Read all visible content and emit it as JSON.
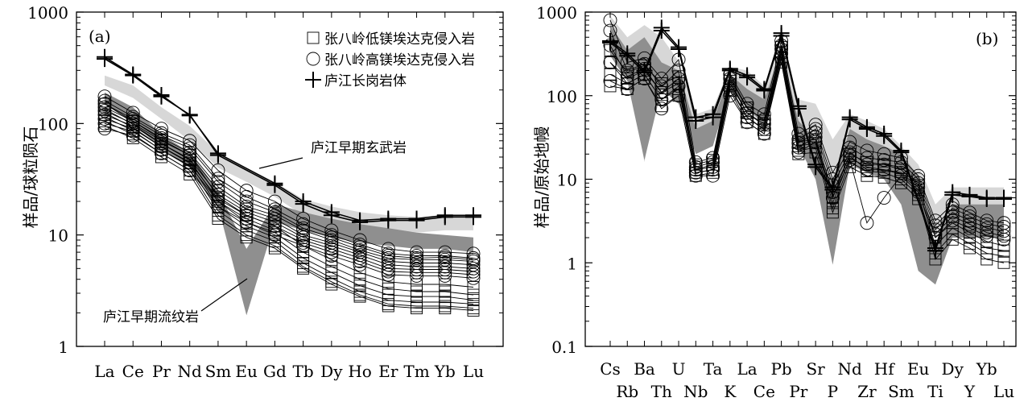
{
  "chart_data": [
    {
      "type": "line",
      "panel_label": "(a)",
      "ylabel": "样品/球粒陨石",
      "xlabel": "",
      "yscale": "log",
      "ylim": [
        1,
        1000
      ],
      "y_ticks": [
        "1",
        "10",
        "100",
        "1000"
      ],
      "categories": [
        "La",
        "Ce",
        "Pr",
        "Nd",
        "Sm",
        "Eu",
        "Gd",
        "Tb",
        "Dy",
        "Ho",
        "Er",
        "Tm",
        "Yb",
        "Lu"
      ],
      "legend": {
        "placement": "top-right",
        "entries": [
          {
            "marker": "square",
            "label": "张八岭低镁埃达克侵入岩"
          },
          {
            "marker": "circle",
            "label": "张八岭高镁埃达克侵入岩"
          },
          {
            "marker": "plus",
            "label": "庐江长岗岩体"
          }
        ]
      },
      "annotations": [
        "庐江早期玄武岩",
        "庐江早期流纹岩"
      ],
      "series": [
        {
          "name": "庐江长岗岩体",
          "marker": "plus",
          "values": [
            380,
            270,
            175,
            120,
            52,
            null,
            28,
            19,
            15,
            13,
            13.5,
            13.5,
            14.5,
            14.5
          ]
        },
        {
          "name": "庐江长岗岩体",
          "marker": "plus",
          "values": [
            395,
            275,
            180,
            118,
            54,
            null,
            29,
            20,
            16,
            13.5,
            14,
            14,
            15,
            15
          ]
        },
        {
          "marker": "circle",
          "values": [
            175,
            125,
            90,
            70,
            38,
            25,
            20,
            14,
            11,
            9,
            7.5,
            7,
            7,
            6.8
          ]
        },
        {
          "marker": "circle",
          "values": [
            160,
            115,
            82,
            64,
            32,
            22,
            17,
            12.5,
            10,
            8.2,
            6.8,
            6.5,
            6.5,
            6.2
          ]
        },
        {
          "marker": "circle",
          "values": [
            150,
            110,
            78,
            60,
            30,
            20,
            16,
            11.5,
            9.5,
            7.8,
            6.5,
            6.2,
            6.3,
            6
          ]
        },
        {
          "marker": "circle",
          "values": [
            140,
            105,
            74,
            55,
            27,
            18,
            15,
            11,
            9,
            7.3,
            6.2,
            6,
            6,
            5.8
          ]
        },
        {
          "marker": "circle",
          "values": [
            130,
            100,
            70,
            52,
            25,
            17,
            14,
            10,
            8.5,
            7,
            5.8,
            5.6,
            5.6,
            5.4
          ]
        },
        {
          "marker": "circle",
          "values": [
            120,
            95,
            66,
            48,
            23,
            16,
            13,
            9.5,
            8,
            6.6,
            5.4,
            5.2,
            5.2,
            5
          ]
        },
        {
          "marker": "circle",
          "values": [
            110,
            90,
            62,
            45,
            21,
            15,
            12,
            9,
            7.5,
            6.2,
            5,
            4.9,
            4.9,
            4.7
          ]
        },
        {
          "marker": "circle",
          "values": [
            100,
            85,
            58,
            42,
            20,
            14,
            11,
            8.5,
            7,
            5.8,
            4.7,
            4.6,
            4.6,
            4.4
          ]
        },
        {
          "marker": "circle",
          "values": [
            90,
            78,
            54,
            38,
            18,
            13,
            10,
            8,
            6.5,
            5.4,
            4.4,
            4.3,
            4.3,
            4.1
          ]
        },
        {
          "marker": "square",
          "values": [
            150,
            105,
            72,
            52,
            22,
            15,
            12,
            8,
            6,
            4.6,
            3.8,
            3.6,
            3.6,
            3.4
          ]
        },
        {
          "marker": "square",
          "values": [
            135,
            98,
            66,
            47,
            20,
            13,
            10.5,
            7,
            5.2,
            4,
            3.3,
            3.1,
            3.1,
            2.9
          ]
        },
        {
          "marker": "square",
          "values": [
            125,
            92,
            62,
            44,
            18,
            12,
            9.5,
            6.2,
            4.6,
            3.5,
            2.9,
            2.8,
            2.8,
            2.6
          ]
        },
        {
          "marker": "square",
          "values": [
            115,
            86,
            58,
            41,
            16.5,
            11,
            8.8,
            5.6,
            4.1,
            3.1,
            2.6,
            2.5,
            2.5,
            2.4
          ]
        },
        {
          "marker": "square",
          "values": [
            105,
            80,
            54,
            38,
            15,
            10,
            8,
            5.2,
            3.8,
            2.9,
            2.4,
            2.3,
            2.3,
            2.2
          ]
        },
        {
          "marker": "square",
          "values": [
            95,
            74,
            50,
            35,
            14,
            9.5,
            7.6,
            5,
            3.6,
            2.8,
            2.3,
            2.2,
            2.2,
            2.1
          ]
        }
      ],
      "field_series": [
        {
          "name": "庐江早期玄武岩",
          "upper": [
            270,
            220,
            140,
            95,
            55,
            40,
            30,
            21,
            18,
            16,
            15,
            14.5,
            15,
            15
          ],
          "lower": [
            220,
            170,
            110,
            70,
            40,
            30,
            22,
            15,
            13,
            11.5,
            11,
            10.5,
            11,
            11
          ]
        },
        {
          "name": "庐江早期流纹岩",
          "upper": [
            190,
            140,
            80,
            55,
            25,
            7.5,
            19,
            16,
            14,
            12.5,
            11.5,
            10.5,
            10,
            9.5
          ],
          "lower": [
            150,
            100,
            60,
            40,
            18,
            1.9,
            13,
            11,
            9.5,
            8.5,
            8,
            7.5,
            7.5,
            7
          ]
        }
      ]
    },
    {
      "type": "line",
      "panel_label": "(b)",
      "ylabel": "样品/原始地幔",
      "xlabel": "",
      "yscale": "log",
      "ylim": [
        0.1,
        1000
      ],
      "y_ticks": [
        "0.1",
        "1",
        "10",
        "100",
        "1000"
      ],
      "categories": [
        "Cs",
        "Rb",
        "Ba",
        "Th",
        "U",
        "Nb",
        "Ta",
        "K",
        "La",
        "Ce",
        "Pb",
        "Pr",
        "Sr",
        "P",
        "Nd",
        "Zr",
        "Hf",
        "Sm",
        "Eu",
        "Ti",
        "Dy",
        "Y",
        "Yb",
        "Lu"
      ],
      "series": [
        {
          "marker": "plus",
          "values": [
            450,
            320,
            200,
            650,
            380,
            55,
            60,
            210,
            175,
            120,
            560,
            75,
            15,
            8,
            55,
            42,
            35,
            22,
            null,
            1.5,
            7,
            6.5,
            6,
            6
          ]
        },
        {
          "marker": "plus",
          "values": [
            430,
            300,
            190,
            600,
            360,
            50,
            55,
            200,
            165,
            115,
            520,
            70,
            14,
            7.5,
            52,
            40,
            33,
            21,
            null,
            1.4,
            6.5,
            6.2,
            5.8,
            5.8
          ]
        },
        {
          "marker": "circle",
          "values": [
            800,
            250,
            280,
            160,
            270,
            16,
            18,
            180,
            80,
            60,
            450,
            35,
            45,
            12,
            28,
            22,
            20,
            18,
            11,
            3.2,
            5,
            4,
            3.2,
            3
          ]
        },
        {
          "marker": "circle",
          "values": [
            600,
            200,
            240,
            130,
            200,
            14,
            16,
            160,
            70,
            52,
            400,
            30,
            40,
            10,
            24,
            18,
            17,
            16,
            10,
            2.8,
            4.5,
            3.6,
            2.9,
            2.7
          ]
        },
        {
          "marker": "circle",
          "values": [
            400,
            170,
            210,
            110,
            160,
            13,
            14,
            140,
            62,
            46,
            360,
            27,
            36,
            8.5,
            21,
            15,
            15,
            14,
            9,
            2.5,
            4,
            3.2,
            2.6,
            2.4
          ]
        },
        {
          "marker": "circle",
          "values": [
            250,
            140,
            180,
            90,
            130,
            12,
            13,
            120,
            55,
            40,
            320,
            24,
            32,
            7,
            19,
            13,
            13,
            12,
            8,
            2.2,
            3.6,
            2.9,
            2.3,
            2.1
          ]
        },
        {
          "marker": "circle",
          "values": [
            150,
            120,
            160,
            70,
            100,
            11,
            11,
            100,
            48,
            35,
            280,
            21,
            28,
            6,
            17,
            3,
            6,
            11,
            7,
            2,
            3.2,
            2.6,
            2.1,
            1.9
          ]
        },
        {
          "marker": "square",
          "values": [
            350,
            190,
            230,
            140,
            170,
            15,
            17,
            170,
            72,
            50,
            380,
            28,
            30,
            6,
            20,
            16,
            15,
            13,
            8.5,
            2,
            3,
            2.3,
            1.8,
            1.6
          ]
        },
        {
          "marker": "square",
          "values": [
            250,
            160,
            200,
            110,
            140,
            13,
            15,
            150,
            62,
            44,
            330,
            25,
            27,
            5.2,
            18,
            14,
            13,
            11.5,
            7.5,
            1.6,
            2.6,
            2,
            1.5,
            1.4
          ]
        },
        {
          "marker": "square",
          "values": [
            180,
            140,
            180,
            90,
            120,
            12,
            13,
            130,
            55,
            39,
            290,
            22,
            24,
            4.5,
            16,
            12.5,
            12,
            10,
            6.5,
            1.3,
            2.2,
            1.7,
            1.3,
            1.2
          ]
        },
        {
          "marker": "square",
          "values": [
            130,
            120,
            160,
            75,
            100,
            11,
            12,
            115,
            48,
            35,
            250,
            20,
            21,
            4,
            14,
            11,
            10.5,
            9,
            5.8,
            1.1,
            1.9,
            1.5,
            1.1,
            1
          ]
        }
      ],
      "field_series": [
        {
          "name": "",
          "upper": [
            900,
            500,
            700,
            500,
            260,
            60,
            70,
            220,
            200,
            130,
            400,
            90,
            80,
            30,
            60,
            50,
            40,
            25,
            15,
            5,
            8,
            8,
            8,
            8
          ],
          "lower": [
            400,
            200,
            16,
            180,
            120,
            40,
            45,
            160,
            100,
            60,
            300,
            40,
            15,
            4,
            25,
            20,
            20,
            14,
            9,
            2,
            4,
            4,
            4,
            4
          ]
        },
        {
          "name": "",
          "upper": [
            700,
            350,
            500,
            250,
            200,
            40,
            50,
            180,
            120,
            90,
            350,
            50,
            30,
            8,
            40,
            30,
            25,
            20,
            11,
            1.5,
            5,
            5,
            5,
            5
          ],
          "lower": [
            300,
            150,
            17,
            120,
            80,
            20,
            25,
            120,
            70,
            45,
            250,
            25,
            10,
            0.95,
            15,
            12,
            10,
            5,
            0.8,
            0.55,
            2,
            2,
            2,
            2
          ]
        }
      ]
    }
  ]
}
